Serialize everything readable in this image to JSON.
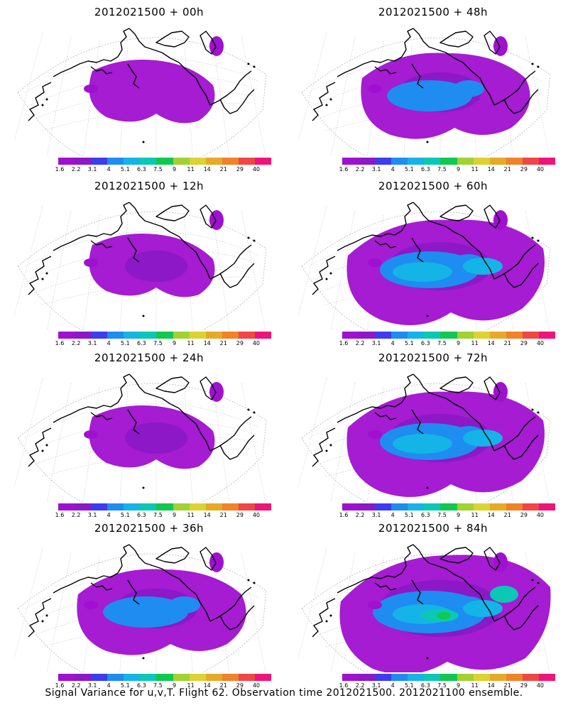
{
  "panels": [
    {
      "title": "2012021500 + 00h",
      "intensity": 0
    },
    {
      "title": "2012021500 + 48h",
      "intensity": 2
    },
    {
      "title": "2012021500 + 12h",
      "intensity": 1
    },
    {
      "title": "2012021500 + 60h",
      "intensity": 3
    },
    {
      "title": "2012021500 + 24h",
      "intensity": 1
    },
    {
      "title": "2012021500 + 72h",
      "intensity": 3
    },
    {
      "title": "2012021500 + 36h",
      "intensity": 2
    },
    {
      "title": "2012021500 + 84h",
      "intensity": 4
    }
  ],
  "colorbar": {
    "colors": [
      "#a010d0",
      "#8c18c8",
      "#3c3cf0",
      "#1e8cf0",
      "#14b4e6",
      "#0ac8b4",
      "#10c850",
      "#a0d232",
      "#dcd232",
      "#e6aa28",
      "#f08228",
      "#f04646",
      "#f01478"
    ],
    "labels": [
      "1.6",
      "2.2",
      "3.1",
      "4",
      "5.1",
      "6.3",
      "7.5",
      "9",
      "11",
      "14",
      "21",
      "29",
      "40"
    ]
  },
  "footer": "Signal Variance for u,v,T. Flight 62. Observation time 2012021500. 2012021100 ensemble."
}
